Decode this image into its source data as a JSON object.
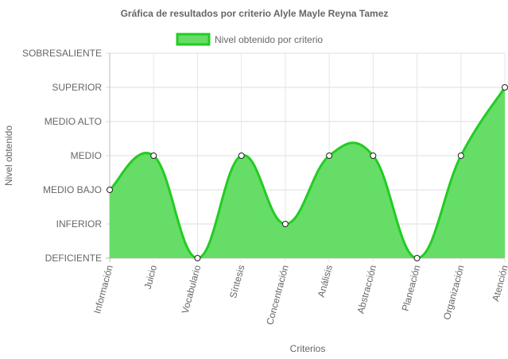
{
  "chart_data": {
    "type": "area",
    "title": "Gráfica de resultados por criterio Alyle Mayle Reyna Tamez",
    "xlabel": "Criterios",
    "ylabel": "Nivel obtenido",
    "y_levels": [
      "DEFICIENTE",
      "INFERIOR",
      "MEDIO BAJO",
      "MEDIO",
      "MEDIO ALTO",
      "SUPERIOR",
      "SOBRESALIENTE"
    ],
    "categories": [
      "Información",
      "Juicio",
      "Vocabulario",
      "Síntesis",
      "Concentración",
      "Análisis",
      "Abstracción",
      "Planeación",
      "Organización",
      "Atención"
    ],
    "series": [
      {
        "name": "Nivel obtenido por criterio",
        "values": [
          "MEDIO BAJO",
          "MEDIO",
          "DEFICIENTE",
          "MEDIO",
          "INFERIOR",
          "MEDIO",
          "MEDIO",
          "DEFICIENTE",
          "MEDIO",
          "SUPERIOR"
        ],
        "fill_color": "#66dd66",
        "line_color": "#22cc22"
      }
    ],
    "grid": true,
    "legend_position": "top"
  }
}
